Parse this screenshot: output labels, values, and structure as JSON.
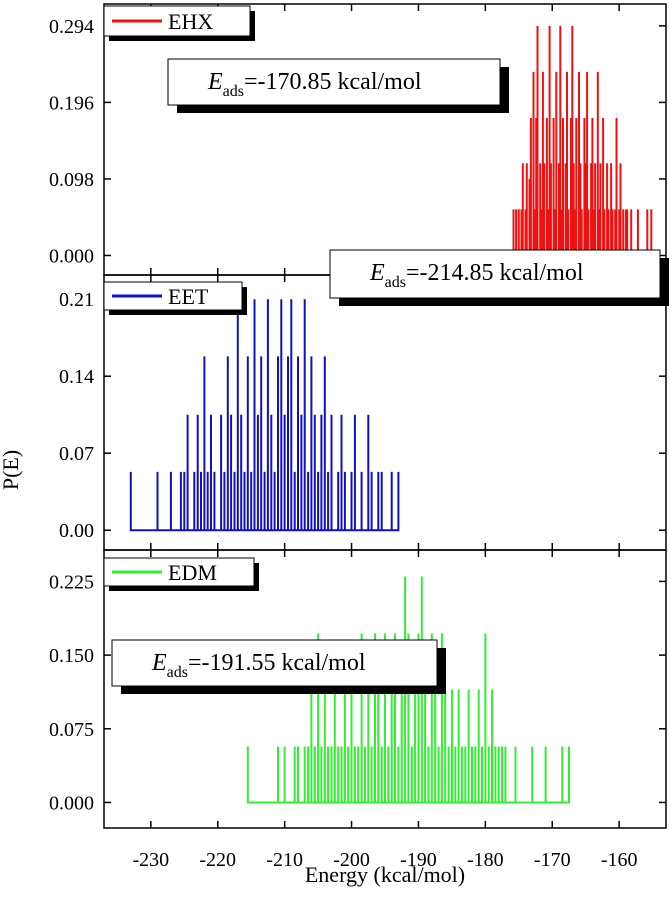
{
  "chart_data": {
    "type": "line",
    "ylabel": "P(E)",
    "xlabel": "Energy (kcal/mol)",
    "xlim": [
      -237,
      -153
    ],
    "xticks": [
      -230,
      -220,
      -210,
      -200,
      -190,
      -180,
      -170,
      -160
    ],
    "grid": false,
    "legend_position": "top-left",
    "panels": [
      {
        "series_name": "EHX",
        "color": "#ee1111",
        "ylim": [
          -0.025,
          0.322
        ],
        "yticks": [
          "0.000",
          "0.098",
          "0.196",
          "0.294"
        ],
        "annotation_value": "=-170.85 kcal/mol",
        "x": [
          -175.8,
          -175.6,
          -175.4,
          -175.2,
          -175.0,
          -174.8,
          -174.6,
          -174.4,
          -174.2,
          -174.0,
          -173.8,
          -173.6,
          -173.4,
          -173.2,
          -173.0,
          -172.8,
          -172.6,
          -172.4,
          -172.2,
          -172.0,
          -171.8,
          -171.6,
          -171.4,
          -171.2,
          -171.0,
          -170.8,
          -170.6,
          -170.4,
          -170.2,
          -170.0,
          -169.8,
          -169.6,
          -169.4,
          -169.2,
          -169.0,
          -168.8,
          -168.6,
          -168.4,
          -168.2,
          -168.0,
          -167.8,
          -167.6,
          -167.4,
          -167.2,
          -167.0,
          -166.8,
          -166.6,
          -166.4,
          -166.2,
          -166.0,
          -165.8,
          -165.6,
          -165.4,
          -165.2,
          -165.0,
          -164.8,
          -164.6,
          -164.4,
          -164.2,
          -164.0,
          -163.8,
          -163.6,
          -163.4,
          -163.2,
          -163.0,
          -162.8,
          -162.6,
          -162.4,
          -162.2,
          -162.0,
          -161.8,
          -161.6,
          -161.4,
          -161.2,
          -161.0,
          -160.8,
          -160.6,
          -160.4,
          -160.2,
          -160.0,
          -159.8,
          -159.6,
          -159.4,
          -159.2,
          -159.0,
          -158.8,
          -158.6,
          -158.4,
          -158.2,
          -158.0,
          -157.8,
          -157.6,
          -157.4,
          -157.2,
          -157.0,
          -156.8,
          -156.6,
          -156.4,
          -156.2,
          -156.0,
          -155.8,
          -155.6,
          -155.4,
          -155.2
        ],
        "y": [
          0.059,
          0,
          0.059,
          0,
          0.059,
          0,
          0.059,
          0.118,
          0,
          0.059,
          0.118,
          0,
          0.098,
          0.176,
          0,
          0.235,
          0.059,
          0.176,
          0.294,
          0,
          0.118,
          0.059,
          0.235,
          0.118,
          0,
          0.176,
          0.059,
          0.294,
          0.118,
          0,
          0.176,
          0.059,
          0.235,
          0,
          0.118,
          0.294,
          0.059,
          0.176,
          0,
          0.118,
          0.235,
          0.059,
          0,
          0.176,
          0.294,
          0.118,
          0.059,
          0.176,
          0,
          0.235,
          0.118,
          0.059,
          0,
          0.176,
          0.118,
          0.235,
          0.059,
          0,
          0.118,
          0.176,
          0.059,
          0.118,
          0,
          0.235,
          0.059,
          0.118,
          0,
          0.176,
          0.059,
          0,
          0.118,
          0.059,
          0,
          0.118,
          0.059,
          0,
          0.059,
          0.176,
          0,
          0.059,
          0.118,
          0,
          0.059,
          0,
          0.059,
          0.059,
          0,
          0,
          0.059,
          0,
          0,
          0,
          0,
          0.059,
          0,
          0,
          0,
          0,
          0,
          0,
          0.059,
          0,
          0,
          0.059
        ]
      },
      {
        "series_name": "EET",
        "color": "#1111bb",
        "ylim": [
          -0.018,
          0.232
        ],
        "yticks": [
          "0.00",
          "0.07",
          "0.14",
          "0.21"
        ],
        "annotation_value": "=-214.85 kcal/mol",
        "x": [
          -233.0,
          -232.5,
          -232.0,
          -231.5,
          -231.0,
          -230.5,
          -230.0,
          -229.5,
          -229.0,
          -228.5,
          -228.0,
          -227.5,
          -227.0,
          -226.5,
          -226.0,
          -225.5,
          -225.0,
          -224.5,
          -224.0,
          -223.5,
          -223.0,
          -222.5,
          -222.0,
          -221.5,
          -221.0,
          -220.5,
          -220.0,
          -219.5,
          -219.0,
          -218.5,
          -218.0,
          -217.5,
          -217.0,
          -216.5,
          -216.0,
          -215.5,
          -215.0,
          -214.5,
          -214.0,
          -213.5,
          -213.0,
          -212.5,
          -212.0,
          -211.5,
          -211.0,
          -210.5,
          -210.0,
          -209.5,
          -209.0,
          -208.5,
          -208.0,
          -207.5,
          -207.0,
          -206.5,
          -206.0,
          -205.5,
          -205.0,
          -204.5,
          -204.0,
          -203.5,
          -203.0,
          -202.5,
          -202.0,
          -201.5,
          -201.0,
          -200.5,
          -200.0,
          -199.5,
          -199.0,
          -198.5,
          -198.0,
          -197.5,
          -197.0,
          -196.5,
          -196.0,
          -195.5,
          -195.0,
          -194.5,
          -194.0,
          -193.5,
          -193.0
        ],
        "y": [
          0.053,
          0,
          0,
          0,
          0,
          0,
          0,
          0,
          0.053,
          0,
          0,
          0,
          0.053,
          0,
          0,
          0.053,
          0.053,
          0.105,
          0,
          0.053,
          0.105,
          0.053,
          0.158,
          0.053,
          0.105,
          0.053,
          0,
          0.105,
          0.053,
          0.158,
          0.105,
          0.053,
          0.21,
          0.105,
          0.053,
          0.158,
          0.053,
          0.21,
          0.105,
          0.158,
          0.053,
          0.21,
          0.105,
          0.053,
          0.158,
          0.21,
          0.105,
          0.158,
          0.21,
          0.053,
          0.158,
          0.105,
          0.21,
          0.053,
          0.158,
          0.105,
          0.053,
          0.105,
          0.158,
          0.053,
          0.105,
          0,
          0.053,
          0.105,
          0.053,
          0,
          0.053,
          0.105,
          0,
          0.053,
          0,
          0.105,
          0.053,
          0,
          0.053,
          0.053,
          0,
          0,
          0.053,
          0,
          0.053
        ]
      },
      {
        "series_name": "EDM",
        "color": "#33ee33",
        "ylim": [
          -0.026,
          0.257
        ],
        "yticks": [
          "0.000",
          "0.075",
          "0.150",
          "0.225"
        ],
        "annotation_value": "=-191.55 kcal/mol",
        "x": [
          -215.5,
          -215.0,
          -214.5,
          -214.0,
          -213.5,
          -213.0,
          -212.5,
          -212.0,
          -211.5,
          -211.0,
          -210.5,
          -210.0,
          -209.5,
          -209.0,
          -208.5,
          -208.0,
          -207.5,
          -207.0,
          -206.5,
          -206.0,
          -205.5,
          -205.0,
          -204.5,
          -204.0,
          -203.5,
          -203.0,
          -202.5,
          -202.0,
          -201.5,
          -201.0,
          -200.5,
          -200.0,
          -199.5,
          -199.0,
          -198.5,
          -198.0,
          -197.5,
          -197.0,
          -196.5,
          -196.0,
          -195.5,
          -195.0,
          -194.5,
          -194.0,
          -193.5,
          -193.0,
          -192.5,
          -192.0,
          -191.5,
          -191.0,
          -190.5,
          -190.0,
          -189.5,
          -189.0,
          -188.5,
          -188.0,
          -187.5,
          -187.0,
          -186.5,
          -186.0,
          -185.5,
          -185.0,
          -184.5,
          -184.0,
          -183.5,
          -183.0,
          -182.5,
          -182.0,
          -181.5,
          -181.0,
          -180.5,
          -180.0,
          -179.5,
          -179.0,
          -178.5,
          -178.0,
          -177.5,
          -177.0,
          -176.5,
          -176.0,
          -175.5,
          -175.0,
          -174.5,
          -174.0,
          -173.5,
          -173.0,
          -172.5,
          -172.0,
          -171.5,
          -171.0,
          -170.5,
          -170.0,
          -169.5,
          -169.0,
          -168.5,
          -168.0,
          -167.5
        ],
        "y": [
          0.057,
          0,
          0,
          0,
          0,
          0,
          0,
          0,
          0,
          0.057,
          0,
          0.057,
          0,
          0,
          0.057,
          0.057,
          0,
          0.057,
          0.057,
          0.115,
          0.057,
          0.172,
          0.057,
          0.115,
          0.057,
          0.057,
          0.115,
          0.057,
          0.057,
          0.115,
          0.057,
          0.115,
          0.057,
          0.057,
          0.172,
          0.057,
          0.115,
          0.057,
          0.172,
          0.115,
          0.057,
          0.172,
          0.057,
          0.115,
          0.172,
          0.057,
          0.115,
          0.23,
          0.172,
          0.057,
          0.115,
          0.172,
          0.23,
          0.115,
          0.057,
          0.172,
          0.115,
          0.057,
          0.172,
          0.115,
          0.057,
          0.115,
          0.057,
          0.115,
          0.057,
          0.057,
          0.115,
          0.057,
          0.057,
          0.115,
          0.057,
          0.172,
          0.057,
          0.115,
          0.057,
          0.057,
          0.057,
          0.057,
          0,
          0,
          0.057,
          0,
          0,
          0,
          0,
          0.057,
          0,
          0,
          0,
          0.057,
          0,
          0,
          0,
          0,
          0.057,
          0,
          0.057
        ]
      }
    ]
  }
}
